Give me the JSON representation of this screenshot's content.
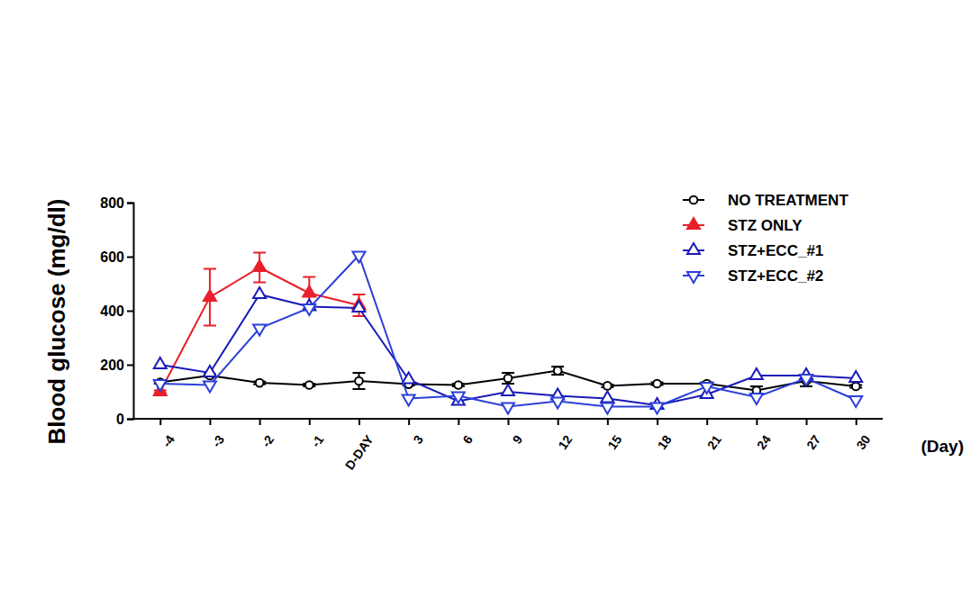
{
  "chart_data": {
    "type": "line",
    "y_label": "Blood glucose (mg/dl)",
    "x_label": "(Day)",
    "categories": [
      "-4",
      "-3",
      "-2",
      "-1",
      "D-DAY",
      "3",
      "6",
      "9",
      "12",
      "15",
      "18",
      "21",
      "24",
      "27",
      "30"
    ],
    "ylim": [
      0,
      800
    ],
    "yticks": [
      0,
      200,
      400,
      600,
      800
    ],
    "grid": false,
    "legend": "upper right",
    "series": [
      {
        "name": "NO TREATMENT",
        "color": "#000000",
        "marker": "circle-open",
        "values": [
          135,
          160,
          133,
          125,
          140,
          128,
          125,
          150,
          178,
          122,
          130,
          130,
          105,
          140,
          120
        ],
        "errors": [
          5,
          5,
          5,
          5,
          30,
          5,
          5,
          20,
          15,
          5,
          5,
          5,
          15,
          20,
          5
        ]
      },
      {
        "name": "STZ ONLY",
        "color": "#e8202a",
        "marker": "triangle-filled",
        "values": [
          100,
          450,
          560,
          465,
          420,
          null,
          null,
          null,
          null,
          null,
          null,
          null,
          null,
          null,
          null
        ],
        "errors": [
          5,
          105,
          55,
          60,
          40,
          null,
          null,
          null,
          null,
          null,
          null,
          null,
          null,
          null,
          null
        ]
      },
      {
        "name": "STZ+ECC_#1",
        "color": "#1a1ab8",
        "marker": "triangle-open",
        "values": [
          200,
          170,
          460,
          415,
          410,
          145,
          65,
          100,
          85,
          75,
          50,
          90,
          160,
          160,
          150
        ]
      },
      {
        "name": "STZ+ECC_#2",
        "color": "#2b3fd9",
        "marker": "triangle-down-open",
        "values": [
          130,
          125,
          335,
          410,
          605,
          75,
          85,
          45,
          65,
          45,
          45,
          120,
          80,
          150,
          70
        ]
      }
    ]
  }
}
